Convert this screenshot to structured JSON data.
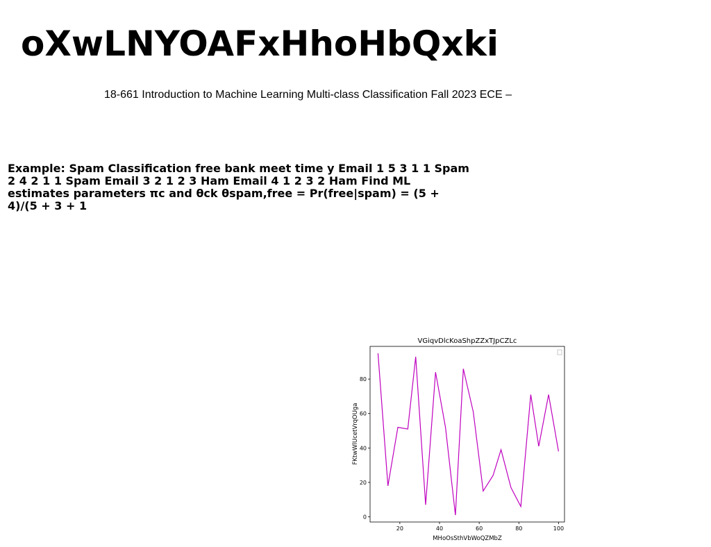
{
  "document": {
    "title": "oXwLNYOAFxHhoHbQxki",
    "subtitle": "18-661 Introduction to Machine Learning Multi-class Classification Fall 2023 ECE –",
    "body": "Example: Spam Classification free bank meet time y Email 1 5 3 1 1 Spam 2 4 2 1 1 Spam Email 3 2 1 2 3 Ham Email 4 1 2 3 2 Ham Find ML estimates parameters πc and θck θspam,free = Pr(free|spam) = (5 + 4)/(5 + 3 + 1"
  },
  "chart_data": {
    "type": "line",
    "title": "VGiqvDlcKoaShpZZxTJpCZLc",
    "xlabel": "MHoOsSthVbWoQZMbZ",
    "ylabel": "FKtwWlUcetVrqOUga",
    "xlim": [
      5,
      103
    ],
    "ylim": [
      -3,
      99
    ],
    "xticks": [
      20,
      40,
      60,
      80,
      100
    ],
    "yticks": [
      0,
      20,
      40,
      60,
      80
    ],
    "grid": false,
    "legend": "top-right",
    "series": [
      {
        "color": "#bf00bf",
        "x": [
          9,
          14,
          19,
          24,
          28,
          33,
          38,
          43,
          48,
          52,
          57,
          62,
          67,
          71,
          76,
          81,
          86,
          90,
          95,
          100
        ],
        "y": [
          95,
          18,
          52,
          51,
          93,
          7,
          84,
          52,
          1,
          86,
          61,
          15,
          24,
          39,
          17,
          6,
          71,
          41,
          71,
          38
        ]
      }
    ]
  }
}
